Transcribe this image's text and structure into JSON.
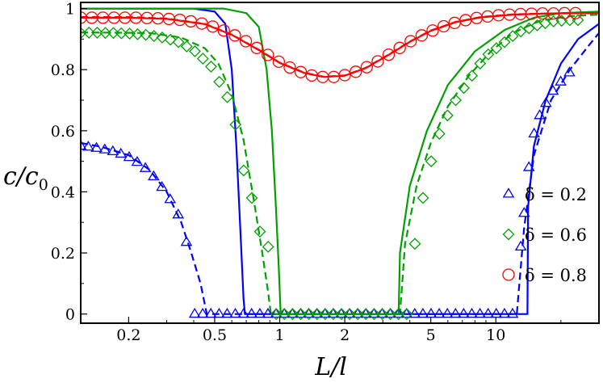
{
  "chart_data": {
    "type": "line",
    "xlabel": "L/l",
    "ylabel": "c/c0",
    "xscale": "log",
    "xlim": [
      0.12,
      30
    ],
    "ylim": [
      -0.03,
      1.02
    ],
    "grid": false,
    "legend_position": "right",
    "x_ticks": [
      {
        "value": 0.2,
        "label": "0.2"
      },
      {
        "value": 0.5,
        "label": "0.5"
      },
      {
        "value": 1,
        "label": "1"
      },
      {
        "value": 2,
        "label": "2"
      },
      {
        "value": 5,
        "label": "5"
      },
      {
        "value": 10,
        "label": "10"
      }
    ],
    "y_ticks": [
      {
        "value": 0,
        "label": "0"
      },
      {
        "value": 0.2,
        "label": "0.2"
      },
      {
        "value": 0.4,
        "label": "0.4"
      },
      {
        "value": 0.6,
        "label": "0.6"
      },
      {
        "value": 0.8,
        "label": "0.8"
      },
      {
        "value": 1,
        "label": "1"
      }
    ],
    "series": [
      {
        "name": "δ = 0.2",
        "color": "#0000ff",
        "marker": "triangle",
        "markers": [
          [
            0.12,
            0.55
          ],
          [
            0.13,
            0.547
          ],
          [
            0.142,
            0.543
          ],
          [
            0.155,
            0.538
          ],
          [
            0.169,
            0.532
          ],
          [
            0.184,
            0.524
          ],
          [
            0.201,
            0.513
          ],
          [
            0.219,
            0.497
          ],
          [
            0.239,
            0.477
          ],
          [
            0.261,
            0.45
          ],
          [
            0.285,
            0.415
          ],
          [
            0.311,
            0.375
          ],
          [
            0.339,
            0.325
          ],
          [
            0.37,
            0.235
          ],
          [
            0.404,
            0.0
          ],
          [
            0.44,
            0.0
          ],
          [
            0.48,
            0.0
          ],
          [
            0.524,
            0.0
          ],
          [
            0.571,
            0.0
          ],
          [
            0.623,
            0.0
          ],
          [
            0.68,
            0.0
          ],
          [
            0.741,
            0.0
          ],
          [
            0.809,
            0.0
          ],
          [
            0.882,
            0.0
          ],
          [
            0.962,
            0.0
          ],
          [
            1.05,
            0.0
          ],
          [
            1.145,
            0.0
          ],
          [
            1.249,
            0.0
          ],
          [
            1.362,
            0.0
          ],
          [
            1.486,
            0.0
          ],
          [
            1.621,
            0.0
          ],
          [
            1.768,
            0.0
          ],
          [
            1.928,
            0.0
          ],
          [
            2.103,
            0.0
          ],
          [
            2.294,
            0.0
          ],
          [
            2.502,
            0.0
          ],
          [
            2.729,
            0.0
          ],
          [
            2.977,
            0.0
          ],
          [
            3.247,
            0.0
          ],
          [
            3.542,
            0.0
          ],
          [
            3.863,
            0.0
          ],
          [
            4.214,
            0.0
          ],
          [
            4.596,
            0.0
          ],
          [
            5.013,
            0.0
          ],
          [
            5.468,
            0.0
          ],
          [
            5.965,
            0.0
          ],
          [
            6.506,
            0.0
          ],
          [
            7.096,
            0.0
          ],
          [
            7.74,
            0.0
          ],
          [
            8.443,
            0.0
          ],
          [
            9.209,
            0.0
          ],
          [
            10.04,
            0.0
          ],
          [
            10.96,
            0.0
          ],
          [
            11.95,
            0.0
          ],
          [
            13.04,
            0.22
          ],
          [
            13.52,
            0.33
          ],
          [
            14.22,
            0.48
          ],
          [
            15.03,
            0.59
          ],
          [
            15.95,
            0.65
          ],
          [
            17.05,
            0.69
          ],
          [
            18.38,
            0.73
          ],
          [
            19.95,
            0.76
          ],
          [
            21.9,
            0.79
          ]
        ],
        "dashed": [
          [
            0.12,
            0.56
          ],
          [
            0.15,
            0.547
          ],
          [
            0.2,
            0.52
          ],
          [
            0.25,
            0.472
          ],
          [
            0.3,
            0.4
          ],
          [
            0.35,
            0.3
          ],
          [
            0.39,
            0.2
          ],
          [
            0.43,
            0.1
          ],
          [
            0.46,
            0.0
          ],
          [
            12.5,
            0.0
          ],
          [
            13.5,
            0.28
          ],
          [
            15.0,
            0.52
          ],
          [
            18.0,
            0.7
          ],
          [
            22.0,
            0.8
          ],
          [
            27.0,
            0.88
          ],
          [
            30.0,
            0.92
          ]
        ],
        "solid": [
          [
            0.12,
            1.0
          ],
          [
            0.4,
            1.0
          ],
          [
            0.5,
            0.99
          ],
          [
            0.56,
            0.95
          ],
          [
            0.6,
            0.8
          ],
          [
            0.63,
            0.55
          ],
          [
            0.66,
            0.25
          ],
          [
            0.68,
            0.05
          ],
          [
            0.69,
            0.0
          ],
          [
            14.0,
            0.0
          ],
          [
            14.1,
            0.35
          ],
          [
            15.0,
            0.55
          ],
          [
            17.0,
            0.7
          ],
          [
            20.0,
            0.82
          ],
          [
            24.0,
            0.9
          ],
          [
            30.0,
            0.95
          ]
        ]
      },
      {
        "name": "δ = 0.6",
        "color": "#00a000",
        "marker": "diamond",
        "markers": [
          [
            0.12,
            0.92
          ],
          [
            0.131,
            0.921
          ],
          [
            0.143,
            0.921
          ],
          [
            0.156,
            0.92
          ],
          [
            0.17,
            0.92
          ],
          [
            0.185,
            0.919
          ],
          [
            0.202,
            0.918
          ],
          [
            0.22,
            0.916
          ],
          [
            0.24,
            0.914
          ],
          [
            0.262,
            0.91
          ],
          [
            0.286,
            0.905
          ],
          [
            0.312,
            0.898
          ],
          [
            0.34,
            0.89
          ],
          [
            0.371,
            0.876
          ],
          [
            0.405,
            0.86
          ],
          [
            0.441,
            0.836
          ],
          [
            0.481,
            0.81
          ],
          [
            0.525,
            0.76
          ],
          [
            0.572,
            0.71
          ],
          [
            0.624,
            0.62
          ],
          [
            0.681,
            0.47
          ],
          [
            0.743,
            0.38
          ],
          [
            0.81,
            0.27
          ],
          [
            0.884,
            0.22
          ],
          [
            0.964,
            0.0
          ],
          [
            1.05,
            0.0
          ],
          [
            1.147,
            0.0
          ],
          [
            1.251,
            0.0
          ],
          [
            1.364,
            0.0
          ],
          [
            1.488,
            0.0
          ],
          [
            1.623,
            0.0
          ],
          [
            1.771,
            0.0
          ],
          [
            1.931,
            0.0
          ],
          [
            2.106,
            0.0
          ],
          [
            2.297,
            0.0
          ],
          [
            2.505,
            0.0
          ],
          [
            2.733,
            0.0
          ],
          [
            2.981,
            0.0
          ],
          [
            3.251,
            0.0
          ],
          [
            3.546,
            0.0
          ],
          [
            3.868,
            0.0
          ],
          [
            4.22,
            0.23
          ],
          [
            4.603,
            0.38
          ],
          [
            5.021,
            0.5
          ],
          [
            5.477,
            0.59
          ],
          [
            5.975,
            0.65
          ],
          [
            6.517,
            0.7
          ],
          [
            7.109,
            0.74
          ],
          [
            7.754,
            0.78
          ],
          [
            8.457,
            0.82
          ],
          [
            9.225,
            0.85
          ],
          [
            10.06,
            0.87
          ],
          [
            10.97,
            0.89
          ],
          [
            11.97,
            0.91
          ],
          [
            13.05,
            0.925
          ],
          [
            14.24,
            0.935
          ],
          [
            15.53,
            0.945
          ],
          [
            16.94,
            0.952
          ],
          [
            18.48,
            0.958
          ],
          [
            20.16,
            0.96
          ],
          [
            21.99,
            0.962
          ],
          [
            23.98,
            0.962
          ]
        ],
        "dashed": [
          [
            0.12,
            0.922
          ],
          [
            0.25,
            0.92
          ],
          [
            0.35,
            0.905
          ],
          [
            0.45,
            0.87
          ],
          [
            0.52,
            0.82
          ],
          [
            0.6,
            0.72
          ],
          [
            0.68,
            0.57
          ],
          [
            0.76,
            0.37
          ],
          [
            0.83,
            0.2
          ],
          [
            0.88,
            0.08
          ],
          [
            0.91,
            0.0
          ],
          [
            3.6,
            0.0
          ],
          [
            3.8,
            0.23
          ],
          [
            4.3,
            0.42
          ],
          [
            5.0,
            0.56
          ],
          [
            6.0,
            0.68
          ],
          [
            7.5,
            0.78
          ],
          [
            9.5,
            0.86
          ],
          [
            12.0,
            0.92
          ],
          [
            16.0,
            0.96
          ],
          [
            22.0,
            0.975
          ],
          [
            30.0,
            0.98
          ]
        ],
        "solid": [
          [
            0.12,
            1.0
          ],
          [
            0.55,
            1.0
          ],
          [
            0.7,
            0.985
          ],
          [
            0.8,
            0.94
          ],
          [
            0.87,
            0.8
          ],
          [
            0.92,
            0.6
          ],
          [
            0.96,
            0.35
          ],
          [
            0.99,
            0.15
          ],
          [
            1.01,
            0.0
          ],
          [
            3.55,
            0.0
          ],
          [
            3.6,
            0.2
          ],
          [
            4.0,
            0.42
          ],
          [
            4.8,
            0.6
          ],
          [
            6.0,
            0.75
          ],
          [
            8.0,
            0.86
          ],
          [
            11.0,
            0.93
          ],
          [
            15.0,
            0.97
          ],
          [
            20.0,
            0.985
          ],
          [
            30.0,
            0.99
          ]
        ]
      },
      {
        "name": "δ = 0.8",
        "color": "#ff0000",
        "marker": "circle",
        "markers": [
          [
            0.12,
            0.97
          ],
          [
            0.135,
            0.97
          ],
          [
            0.152,
            0.97
          ],
          [
            0.171,
            0.97
          ],
          [
            0.192,
            0.97
          ],
          [
            0.216,
            0.97
          ],
          [
            0.243,
            0.969
          ],
          [
            0.273,
            0.968
          ],
          [
            0.307,
            0.966
          ],
          [
            0.345,
            0.963
          ],
          [
            0.388,
            0.958
          ],
          [
            0.436,
            0.951
          ],
          [
            0.49,
            0.941
          ],
          [
            0.551,
            0.928
          ],
          [
            0.62,
            0.912
          ],
          [
            0.697,
            0.893
          ],
          [
            0.783,
            0.871
          ],
          [
            0.881,
            0.848
          ],
          [
            0.99,
            0.826
          ],
          [
            1.113,
            0.807
          ],
          [
            1.251,
            0.792
          ],
          [
            1.407,
            0.781
          ],
          [
            1.581,
            0.776
          ],
          [
            1.778,
            0.776
          ],
          [
            1.999,
            0.782
          ],
          [
            2.247,
            0.793
          ],
          [
            2.527,
            0.808
          ],
          [
            2.84,
            0.827
          ],
          [
            3.193,
            0.849
          ],
          [
            3.59,
            0.871
          ],
          [
            4.035,
            0.893
          ],
          [
            4.537,
            0.912
          ],
          [
            5.1,
            0.928
          ],
          [
            5.733,
            0.942
          ],
          [
            6.445,
            0.953
          ],
          [
            7.246,
            0.962
          ],
          [
            8.146,
            0.969
          ],
          [
            9.158,
            0.974
          ],
          [
            10.29,
            0.978
          ],
          [
            11.57,
            0.98
          ],
          [
            13.01,
            0.982
          ],
          [
            14.62,
            0.983
          ],
          [
            16.44,
            0.984
          ],
          [
            18.48,
            0.984
          ],
          [
            20.78,
            0.985
          ],
          [
            23.36,
            0.985
          ]
        ],
        "dashed": [
          [
            0.12,
            0.972
          ],
          [
            0.2,
            0.972
          ],
          [
            0.3,
            0.967
          ],
          [
            0.45,
            0.95
          ],
          [
            0.6,
            0.915
          ],
          [
            0.8,
            0.865
          ],
          [
            1.0,
            0.823
          ],
          [
            1.3,
            0.79
          ],
          [
            1.6,
            0.777
          ],
          [
            2.0,
            0.781
          ],
          [
            2.5,
            0.806
          ],
          [
            3.2,
            0.85
          ],
          [
            4.0,
            0.892
          ],
          [
            5.0,
            0.928
          ],
          [
            6.5,
            0.956
          ],
          [
            8.5,
            0.972
          ],
          [
            12.0,
            0.981
          ],
          [
            18.0,
            0.984
          ],
          [
            30.0,
            0.985
          ]
        ],
        "solid": [
          [
            0.12,
            0.97
          ],
          [
            0.2,
            0.97
          ],
          [
            0.3,
            0.966
          ],
          [
            0.45,
            0.949
          ],
          [
            0.6,
            0.914
          ],
          [
            0.8,
            0.864
          ],
          [
            1.0,
            0.822
          ],
          [
            1.3,
            0.789
          ],
          [
            1.6,
            0.776
          ],
          [
            2.0,
            0.78
          ],
          [
            2.5,
            0.805
          ],
          [
            3.2,
            0.849
          ],
          [
            4.0,
            0.891
          ],
          [
            5.0,
            0.927
          ],
          [
            6.5,
            0.955
          ],
          [
            8.5,
            0.971
          ],
          [
            12.0,
            0.98
          ],
          [
            18.0,
            0.984
          ],
          [
            30.0,
            0.985
          ]
        ]
      }
    ]
  }
}
